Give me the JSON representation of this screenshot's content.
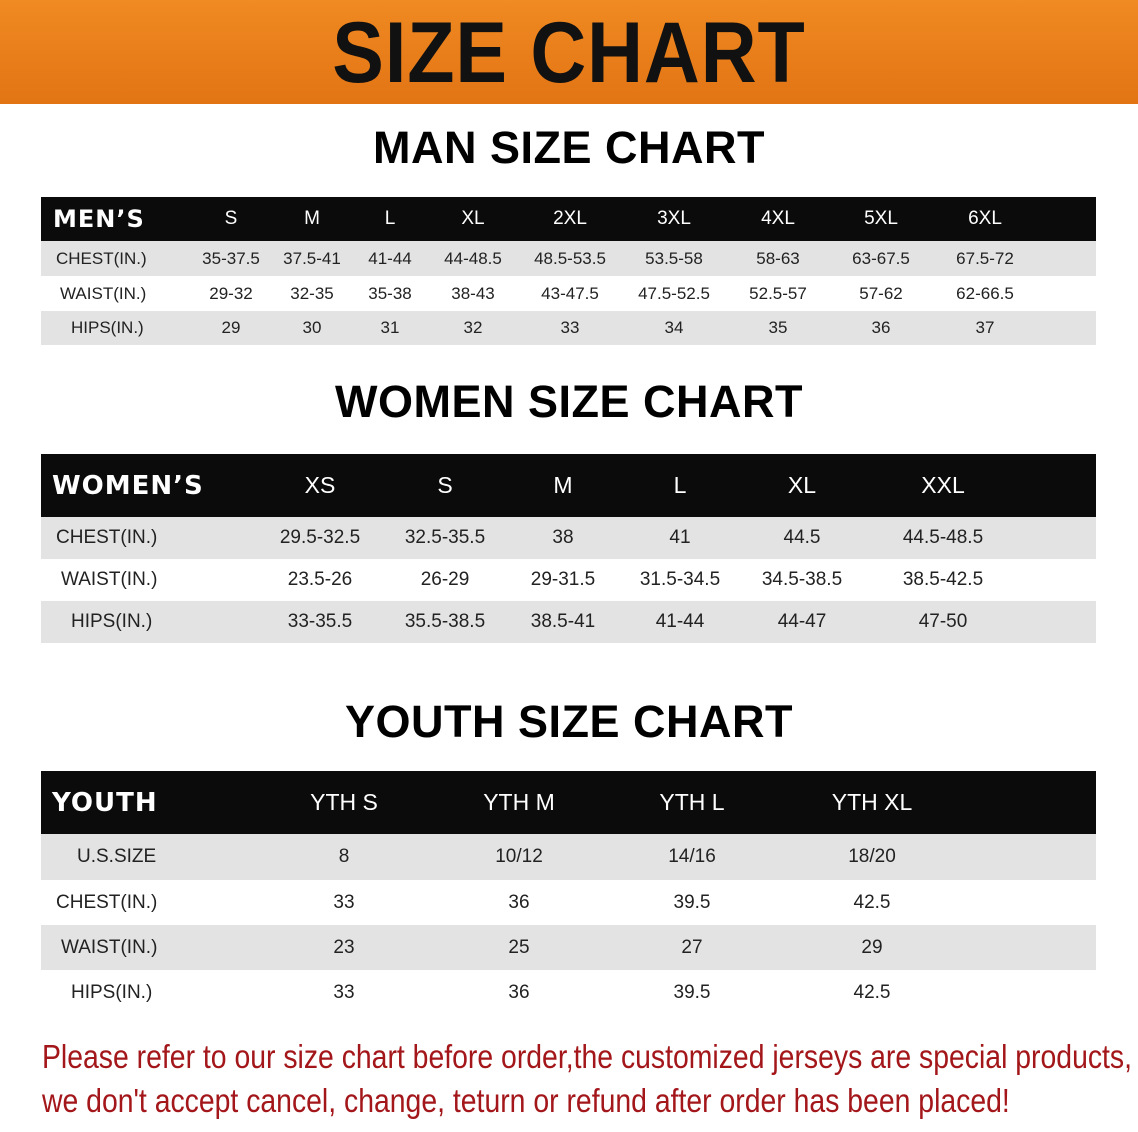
{
  "banner": {
    "title": "SIZE CHART",
    "color": "#e97d1a"
  },
  "men": {
    "title": "MAN SIZE CHART",
    "header": [
      "MEN’S",
      "S",
      "M",
      "L",
      "XL",
      "2XL",
      "3XL",
      "4XL",
      "5XL",
      "6XL"
    ],
    "rows": [
      [
        "CHEST(IN.)",
        "35-37.5",
        "37.5-41",
        "41-44",
        "44-48.5",
        "48.5-53.5",
        "53.5-58",
        "58-63",
        "63-67.5",
        "67.5-72"
      ],
      [
        "WAIST(IN.)",
        "29-32",
        "32-35",
        "35-38",
        "38-43",
        "43-47.5",
        "47.5-52.5",
        "52.5-57",
        "57-62",
        "62-66.5"
      ],
      [
        "HIPS(IN.)",
        "29",
        "30",
        "31",
        "32",
        "33",
        "34",
        "35",
        "36",
        "37"
      ]
    ]
  },
  "women": {
    "title": "WOMEN SIZE CHART",
    "header": [
      "WOMEN’S",
      "XS",
      "S",
      "M",
      "L",
      "XL",
      "XXL"
    ],
    "rows": [
      [
        "CHEST(IN.)",
        "29.5-32.5",
        "32.5-35.5",
        "38",
        "41",
        "44.5",
        "44.5-48.5"
      ],
      [
        "WAIST(IN.)",
        "23.5-26",
        "26-29",
        "29-31.5",
        "31.5-34.5",
        "34.5-38.5",
        "38.5-42.5"
      ],
      [
        "HIPS(IN.)",
        "33-35.5",
        "35.5-38.5",
        "38.5-41",
        "41-44",
        "44-47",
        "47-50"
      ]
    ]
  },
  "youth": {
    "title": "YOUTH SIZE CHART",
    "header": [
      "YOUTH",
      "YTH S",
      "YTH M",
      "YTH L",
      "YTH XL"
    ],
    "rows": [
      [
        "U.S.SIZE",
        "8",
        "10/12",
        "14/16",
        "18/20"
      ],
      [
        "CHEST(IN.)",
        "33",
        "36",
        "39.5",
        "42.5"
      ],
      [
        "WAIST(IN.)",
        "23",
        "25",
        "27",
        "29"
      ],
      [
        "HIPS(IN.)",
        "33",
        "36",
        "39.5",
        "42.5"
      ]
    ]
  },
  "notice": {
    "line1": "Please refer to our size chart before order,the customized jerseys are special products,",
    "line2": "we don't accept cancel, change, teturn or refund after order has been placed!",
    "color": "#a3161a"
  }
}
